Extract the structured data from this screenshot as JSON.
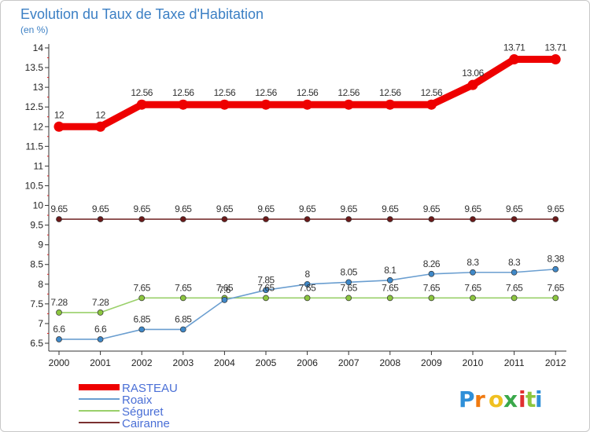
{
  "chart_data": {
    "type": "line",
    "title": "Evolution du Taux de Taxe d'Habitation",
    "subtitle": "(en %)",
    "xlabel": "",
    "ylabel": "(en %)",
    "categories": [
      "2000",
      "2001",
      "2002",
      "2003",
      "2004",
      "2005",
      "2006",
      "2007",
      "2008",
      "2009",
      "2010",
      "2011",
      "2012"
    ],
    "ylim": [
      6.5,
      14
    ],
    "yticks": [
      6.5,
      7,
      7.5,
      8,
      8.5,
      9,
      9.5,
      10,
      10.5,
      11,
      11.5,
      12,
      12.5,
      13,
      13.5,
      14
    ],
    "ytick_labels": [
      "6.5",
      "7",
      "7.5",
      "8",
      "8.5",
      "9",
      "9.5",
      "10",
      "10.5",
      "11",
      "11.5",
      "12",
      "12.5",
      "13",
      "13.5",
      "14"
    ],
    "grid": false,
    "legend_position": "bottom-left",
    "series": [
      {
        "name": "Cairanne",
        "color": "#7a3030",
        "marker_color": "#6b1a1a",
        "values": [
          9.65,
          9.65,
          9.65,
          9.65,
          9.65,
          9.65,
          9.65,
          9.65,
          9.65,
          9.65,
          9.65,
          9.65,
          9.65
        ],
        "labels": [
          "9.65",
          "9.65",
          "9.65",
          "9.65",
          "9.65",
          "9.65",
          "9.65",
          "9.65",
          "9.65",
          "9.65",
          "9.65",
          "9.65",
          "9.65"
        ]
      },
      {
        "name": "Séguret",
        "color": "#9ad06a",
        "marker_color": "#8cc63f",
        "values": [
          7.28,
          7.28,
          7.65,
          7.65,
          7.65,
          7.65,
          7.65,
          7.65,
          7.65,
          7.65,
          7.65,
          7.65,
          7.65
        ],
        "labels": [
          "7.28",
          "7.28",
          "7.65",
          "7.65",
          "7.65",
          "7.65",
          "7.65",
          "7.65",
          "7.65",
          "7.65",
          "7.65",
          "7.65",
          "7.65"
        ]
      },
      {
        "name": "Roaix",
        "color": "#6a9ed0",
        "marker_color": "#3f88c8",
        "values": [
          6.6,
          6.6,
          6.85,
          6.85,
          7.6,
          7.85,
          8,
          8.05,
          8.1,
          8.26,
          8.3,
          8.3,
          8.38
        ],
        "labels": [
          "6.6",
          "6.6",
          "6.85",
          "6.85",
          "7.6",
          "7.85",
          "8",
          "8.05",
          "8.1",
          "8.26",
          "8.3",
          "8.3",
          "8.38"
        ]
      },
      {
        "name": "RASTEAU",
        "color": "#ee0000",
        "marker_color": "#ee0000",
        "values": [
          12,
          12,
          12.56,
          12.56,
          12.56,
          12.56,
          12.56,
          12.56,
          12.56,
          12.56,
          13.06,
          13.71,
          13.71
        ],
        "labels": [
          "12",
          "12",
          "12.56",
          "12.56",
          "12.56",
          "12.56",
          "12.56",
          "12.56",
          "12.56",
          "12.56",
          "13.06",
          "13.71",
          "13.71"
        ]
      }
    ],
    "legend": [
      {
        "name": "RASTEAU",
        "color": "#ee0000",
        "text_color": "#4a6fd6"
      },
      {
        "name": "Roaix",
        "color": "#6a9ed0",
        "text_color": "#4a6fd6"
      },
      {
        "name": "Séguret",
        "color": "#9ad06a",
        "text_color": "#4a6fd6"
      },
      {
        "name": "Cairanne",
        "color": "#7a3030",
        "text_color": "#4a6fd6"
      }
    ]
  },
  "logo": {
    "text": "Proxiti"
  }
}
